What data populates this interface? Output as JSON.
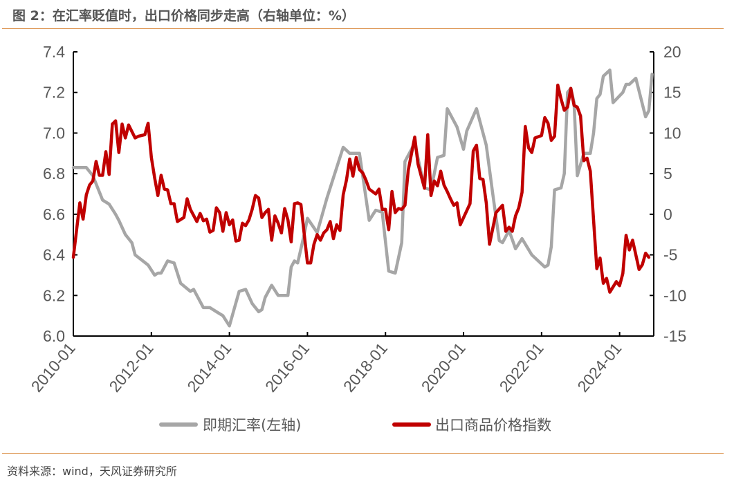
{
  "title": "图 2：在汇率贬值时，出口价格同步走高（右轴单位：%）",
  "source": "资料来源：wind，天风证券研究所",
  "colors": {
    "exchange_rate": "#a6a6a6",
    "export_price": "#c00000",
    "rule": "#d9893d"
  },
  "chart_data": {
    "type": "line",
    "title": "",
    "x_ticks": [
      "2010-01",
      "2012-01",
      "2014-01",
      "2016-01",
      "2018-01",
      "2020-01",
      "2022-01",
      "2024-01"
    ],
    "x_range": [
      "2010-01",
      "2024-11"
    ],
    "y_left": {
      "range": [
        6.0,
        7.4
      ],
      "ticks": [
        "6.0",
        "6.2",
        "6.4",
        "6.6",
        "6.8",
        "7.0",
        "7.2",
        "7.4"
      ]
    },
    "y_right": {
      "range": [
        -15,
        20
      ],
      "ticks": [
        "-15",
        "-10",
        "-5",
        "0",
        "5",
        "10",
        "15",
        "20"
      ]
    },
    "grid": false,
    "legend_position": "bottom",
    "series": [
      {
        "name": "即期汇率(左轴)",
        "axis": "left",
        "color": "#a6a6a6",
        "points": [
          [
            "2010-01",
            6.83
          ],
          [
            "2010-05",
            6.83
          ],
          [
            "2010-07",
            6.79
          ],
          [
            "2010-10",
            6.67
          ],
          [
            "2010-12",
            6.65
          ],
          [
            "2011-02",
            6.6
          ],
          [
            "2011-03",
            6.57
          ],
          [
            "2011-05",
            6.5
          ],
          [
            "2011-07",
            6.46
          ],
          [
            "2011-08",
            6.4
          ],
          [
            "2011-12",
            6.35
          ],
          [
            "2012-02",
            6.3
          ],
          [
            "2012-03",
            6.31
          ],
          [
            "2012-04",
            6.31
          ],
          [
            "2012-06",
            6.37
          ],
          [
            "2012-08",
            6.36
          ],
          [
            "2012-10",
            6.26
          ],
          [
            "2013-01",
            6.22
          ],
          [
            "2013-02",
            6.23
          ],
          [
            "2013-05",
            6.14
          ],
          [
            "2013-07",
            6.14
          ],
          [
            "2013-09",
            6.12
          ],
          [
            "2013-11",
            6.1
          ],
          [
            "2014-01",
            6.05
          ],
          [
            "2014-04",
            6.22
          ],
          [
            "2014-06",
            6.23
          ],
          [
            "2014-08",
            6.16
          ],
          [
            "2014-10",
            6.12
          ],
          [
            "2014-11",
            6.13
          ],
          [
            "2014-12",
            6.19
          ],
          [
            "2015-02",
            6.25
          ],
          [
            "2015-04",
            6.2
          ],
          [
            "2015-07",
            6.2
          ],
          [
            "2015-08",
            6.34
          ],
          [
            "2015-09",
            6.37
          ],
          [
            "2015-10",
            6.36
          ],
          [
            "2015-12",
            6.5
          ],
          [
            "2016-01",
            6.58
          ],
          [
            "2016-04",
            6.51
          ],
          [
            "2016-07",
            6.68
          ],
          [
            "2016-12",
            6.93
          ],
          [
            "2017-02",
            6.9
          ],
          [
            "2017-05",
            6.9
          ],
          [
            "2017-08",
            6.57
          ],
          [
            "2017-10",
            6.62
          ],
          [
            "2017-12",
            6.61
          ],
          [
            "2018-02",
            6.32
          ],
          [
            "2018-04",
            6.31
          ],
          [
            "2018-06",
            6.46
          ],
          [
            "2018-07",
            6.86
          ],
          [
            "2018-10",
            6.95
          ],
          [
            "2019-01",
            6.73
          ],
          [
            "2019-03",
            6.72
          ],
          [
            "2019-05",
            6.88
          ],
          [
            "2019-07",
            6.89
          ],
          [
            "2019-08",
            7.12
          ],
          [
            "2019-11",
            7.03
          ],
          [
            "2020-01",
            6.92
          ],
          [
            "2020-02",
            7.01
          ],
          [
            "2020-05",
            7.12
          ],
          [
            "2020-08",
            6.94
          ],
          [
            "2020-10",
            6.7
          ],
          [
            "2020-12",
            6.47
          ],
          [
            "2021-01",
            6.46
          ],
          [
            "2021-03",
            6.52
          ],
          [
            "2021-05",
            6.43
          ],
          [
            "2021-07",
            6.48
          ],
          [
            "2021-10",
            6.4
          ],
          [
            "2022-02",
            6.34
          ],
          [
            "2022-03",
            6.35
          ],
          [
            "2022-04",
            6.44
          ],
          [
            "2022-05",
            6.72
          ],
          [
            "2022-07",
            6.73
          ],
          [
            "2022-08",
            6.8
          ],
          [
            "2022-09",
            7.2
          ],
          [
            "2022-10",
            7.22
          ],
          [
            "2022-11",
            7.15
          ],
          [
            "2022-12",
            6.79
          ],
          [
            "2023-02",
            6.9
          ],
          [
            "2023-04",
            6.9
          ],
          [
            "2023-05",
            7.0
          ],
          [
            "2023-06",
            7.17
          ],
          [
            "2023-07",
            7.19
          ],
          [
            "2023-08",
            7.28
          ],
          [
            "2023-10",
            7.31
          ],
          [
            "2023-11",
            7.15
          ],
          [
            "2024-02",
            7.2
          ],
          [
            "2024-03",
            7.24
          ],
          [
            "2024-04",
            7.24
          ],
          [
            "2024-06",
            7.27
          ],
          [
            "2024-09",
            7.08
          ],
          [
            "2024-10",
            7.11
          ],
          [
            "2024-11",
            7.29
          ]
        ]
      },
      {
        "name": "出口商品价格指数",
        "axis": "right",
        "color": "#c00000",
        "points": [
          [
            "2010-01",
            -5.3
          ],
          [
            "2010-03",
            1.4
          ],
          [
            "2010-04",
            -0.6
          ],
          [
            "2010-05",
            2.4
          ],
          [
            "2010-06",
            3.6
          ],
          [
            "2010-07",
            4.1
          ],
          [
            "2010-08",
            6.5
          ],
          [
            "2010-09",
            4.8
          ],
          [
            "2010-10",
            4.8
          ],
          [
            "2010-11",
            7.7
          ],
          [
            "2010-12",
            4.9
          ],
          [
            "2011-01",
            11.1
          ],
          [
            "2011-02",
            11.5
          ],
          [
            "2011-03",
            7.6
          ],
          [
            "2011-04",
            11.1
          ],
          [
            "2011-05",
            9.4
          ],
          [
            "2011-06",
            11.0
          ],
          [
            "2011-08",
            9.4
          ],
          [
            "2011-09",
            9.6
          ],
          [
            "2011-11",
            9.8
          ],
          [
            "2011-12",
            11.2
          ],
          [
            "2012-01",
            7.0
          ],
          [
            "2012-02",
            4.5
          ],
          [
            "2012-03",
            2.3
          ],
          [
            "2012-04",
            4.8
          ],
          [
            "2012-05",
            3.1
          ],
          [
            "2012-06",
            3.0
          ],
          [
            "2012-07",
            1.3
          ],
          [
            "2012-08",
            1.3
          ],
          [
            "2012-09",
            -0.9
          ],
          [
            "2012-11",
            -0.4
          ],
          [
            "2012-12",
            1.9
          ],
          [
            "2013-01",
            0.6
          ],
          [
            "2013-03",
            -0.9
          ],
          [
            "2013-04",
            0.1
          ],
          [
            "2013-05",
            -0.8
          ],
          [
            "2013-06",
            -0.6
          ],
          [
            "2013-07",
            -2.2
          ],
          [
            "2013-08",
            -2.0
          ],
          [
            "2013-09",
            0.8
          ],
          [
            "2013-10",
            0.2
          ],
          [
            "2013-11",
            -2.1
          ],
          [
            "2013-12",
            0.2
          ],
          [
            "2014-01",
            -1.3
          ],
          [
            "2014-02",
            -0.7
          ],
          [
            "2014-03",
            -3.3
          ],
          [
            "2014-04",
            -3.2
          ],
          [
            "2014-05",
            -1.1
          ],
          [
            "2014-06",
            -1.4
          ],
          [
            "2014-07",
            -0.7
          ],
          [
            "2014-08",
            0.6
          ],
          [
            "2014-09",
            2.3
          ],
          [
            "2014-10",
            2.0
          ],
          [
            "2014-11",
            -0.4
          ],
          [
            "2014-12",
            0.2
          ],
          [
            "2015-01",
            0.6
          ],
          [
            "2015-02",
            -3.2
          ],
          [
            "2015-03",
            -0.2
          ],
          [
            "2015-04",
            -1.1
          ],
          [
            "2015-05",
            -2.3
          ],
          [
            "2015-06",
            0.7
          ],
          [
            "2015-07",
            -0.7
          ],
          [
            "2015-08",
            -3.4
          ],
          [
            "2015-09",
            1.3
          ],
          [
            "2015-10",
            1.4
          ],
          [
            "2015-11",
            1.2
          ],
          [
            "2016-01",
            -6.0
          ],
          [
            "2016-02",
            -6.0
          ],
          [
            "2016-03",
            -3.7
          ],
          [
            "2016-04",
            -2.5
          ],
          [
            "2016-05",
            -3.2
          ],
          [
            "2016-06",
            -2.3
          ],
          [
            "2016-07",
            -1.9
          ],
          [
            "2016-08",
            -0.9
          ],
          [
            "2016-09",
            -3.0
          ],
          [
            "2016-10",
            -1.3
          ],
          [
            "2016-11",
            -2.0
          ],
          [
            "2016-12",
            2.4
          ],
          [
            "2017-01",
            4.2
          ],
          [
            "2017-02",
            6.8
          ],
          [
            "2017-03",
            4.7
          ],
          [
            "2017-04",
            7.0
          ],
          [
            "2017-05",
            5.5
          ],
          [
            "2017-06",
            5.1
          ],
          [
            "2017-07",
            4.2
          ],
          [
            "2017-08",
            3.1
          ],
          [
            "2017-10",
            2.5
          ],
          [
            "2017-11",
            3.1
          ],
          [
            "2017-12",
            0.6
          ],
          [
            "2018-01",
            0.6
          ],
          [
            "2018-02",
            -1.9
          ],
          [
            "2018-03",
            2.8
          ],
          [
            "2018-04",
            0.2
          ],
          [
            "2018-05",
            0.7
          ],
          [
            "2018-06",
            0.6
          ],
          [
            "2018-07",
            1.1
          ],
          [
            "2018-08",
            5.4
          ],
          [
            "2018-10",
            9.5
          ],
          [
            "2018-11",
            6.2
          ],
          [
            "2019-01",
            3.2
          ],
          [
            "2019-02",
            9.8
          ],
          [
            "2019-03",
            2.3
          ],
          [
            "2019-04",
            4.1
          ],
          [
            "2019-05",
            3.5
          ],
          [
            "2019-06",
            5.3
          ],
          [
            "2019-07",
            3.6
          ],
          [
            "2019-08",
            2.8
          ],
          [
            "2019-09",
            1.9
          ],
          [
            "2019-10",
            1.1
          ],
          [
            "2019-11",
            1.4
          ],
          [
            "2019-12",
            -1.3
          ],
          [
            "2020-03",
            1.3
          ],
          [
            "2020-04",
            7.8
          ],
          [
            "2020-05",
            8.5
          ],
          [
            "2020-06",
            4.4
          ],
          [
            "2020-07",
            4.3
          ],
          [
            "2020-08",
            1.4
          ],
          [
            "2020-09",
            -3.7
          ],
          [
            "2020-11",
            0.2
          ],
          [
            "2021-01",
            1.1
          ],
          [
            "2021-02",
            -2.1
          ],
          [
            "2021-03",
            -1.6
          ],
          [
            "2021-04",
            -2.1
          ],
          [
            "2021-05",
            -0.2
          ],
          [
            "2021-06",
            0.8
          ],
          [
            "2021-07",
            2.7
          ],
          [
            "2021-08",
            10.8
          ],
          [
            "2021-09",
            8.2
          ],
          [
            "2021-10",
            7.6
          ],
          [
            "2021-11",
            9.4
          ],
          [
            "2022-01",
            9.7
          ],
          [
            "2022-02",
            11.9
          ],
          [
            "2022-03",
            11.2
          ],
          [
            "2022-04",
            9.1
          ],
          [
            "2022-05",
            9.6
          ],
          [
            "2022-06",
            15.9
          ],
          [
            "2022-07",
            14.2
          ],
          [
            "2022-08",
            12.8
          ],
          [
            "2022-09",
            13.2
          ],
          [
            "2022-10",
            15.5
          ],
          [
            "2022-11",
            13.4
          ],
          [
            "2022-12",
            13.2
          ],
          [
            "2023-01",
            12.1
          ],
          [
            "2023-02",
            6.6
          ],
          [
            "2023-03",
            6.9
          ],
          [
            "2023-04",
            5.3
          ],
          [
            "2023-06",
            -6.7
          ],
          [
            "2023-07",
            -5.4
          ],
          [
            "2023-08",
            -8.5
          ],
          [
            "2023-09",
            -7.9
          ],
          [
            "2023-10",
            -9.6
          ],
          [
            "2023-12",
            -8.3
          ],
          [
            "2024-01",
            -8.8
          ],
          [
            "2024-02",
            -7.3
          ],
          [
            "2024-03",
            -2.6
          ],
          [
            "2024-04",
            -4.4
          ],
          [
            "2024-05",
            -3.2
          ],
          [
            "2024-07",
            -6.8
          ],
          [
            "2024-08",
            -6.2
          ],
          [
            "2024-09",
            -4.8
          ],
          [
            "2024-10",
            -5.3
          ]
        ]
      }
    ]
  }
}
